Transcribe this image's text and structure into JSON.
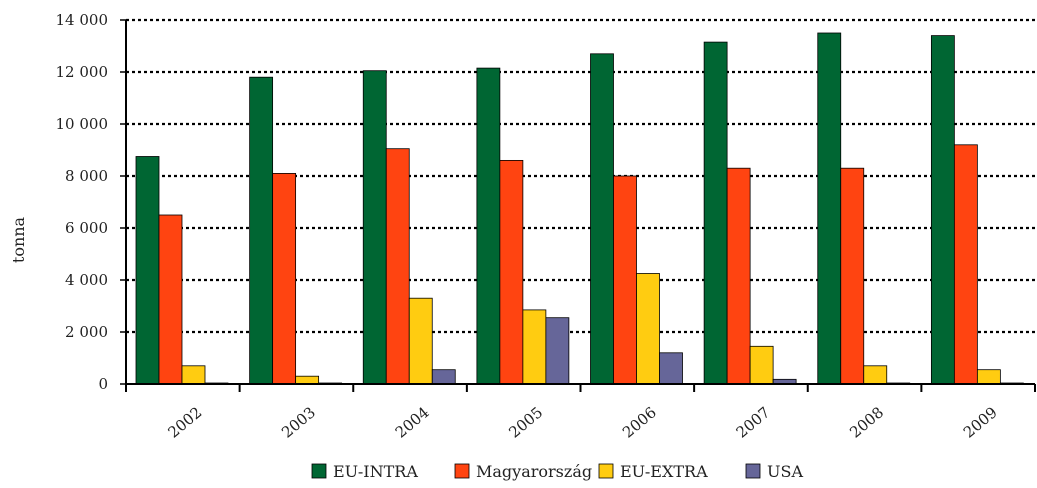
{
  "chart_data": {
    "type": "bar",
    "title": "",
    "xlabel": "",
    "ylabel": "tonna",
    "categories": [
      "2002",
      "2003",
      "2004",
      "2005",
      "2006",
      "2007",
      "2008",
      "2009"
    ],
    "ylim": [
      0,
      14000
    ],
    "yticks": [
      0,
      2000,
      4000,
      6000,
      8000,
      10000,
      12000,
      14000
    ],
    "ytick_labels": [
      "0",
      "2 000",
      "4 000",
      "6 000",
      "8 000",
      "10 000",
      "12 000",
      "14 000"
    ],
    "grid": true,
    "grid_style": "dotted",
    "legend_position": "bottom",
    "series": [
      {
        "name": "EU-INTRA",
        "color": "#006633",
        "values": [
          8750,
          11800,
          12050,
          12150,
          12700,
          13150,
          13500,
          13400
        ]
      },
      {
        "name": "Magyarország",
        "color": "#ff4411",
        "values": [
          6500,
          8100,
          9050,
          8600,
          8000,
          8300,
          8300,
          9200
        ]
      },
      {
        "name": "EU-EXTRA",
        "color": "#ffcc11",
        "values": [
          700,
          300,
          3300,
          2850,
          4250,
          1450,
          700,
          550
        ]
      },
      {
        "name": "USA",
        "color": "#666699",
        "values": [
          0,
          0,
          550,
          2550,
          1200,
          180,
          0,
          0
        ]
      }
    ]
  }
}
